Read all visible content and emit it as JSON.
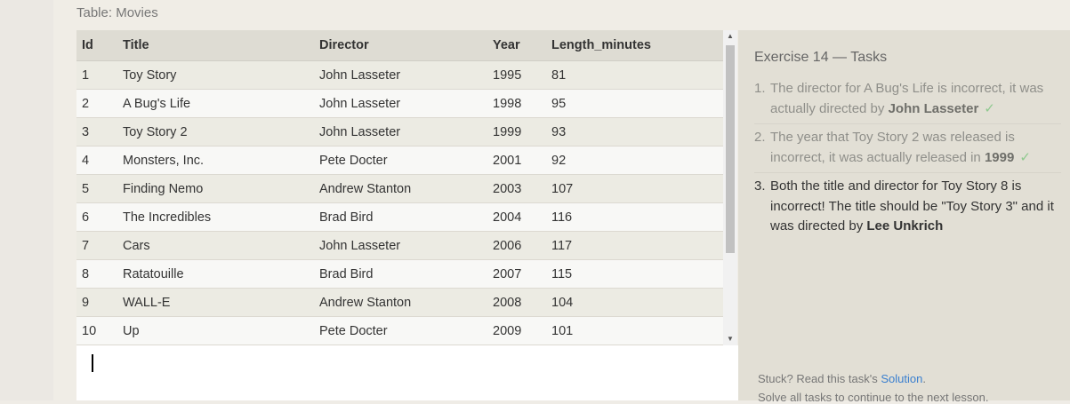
{
  "table_label": "Table: Movies",
  "columns": [
    "Id",
    "Title",
    "Director",
    "Year",
    "Length_minutes"
  ],
  "rows": [
    [
      "1",
      "Toy Story",
      "John Lasseter",
      "1995",
      "81"
    ],
    [
      "2",
      "A Bug's Life",
      "John Lasseter",
      "1998",
      "95"
    ],
    [
      "3",
      "Toy Story 2",
      "John Lasseter",
      "1999",
      "93"
    ],
    [
      "4",
      "Monsters, Inc.",
      "Pete Docter",
      "2001",
      "92"
    ],
    [
      "5",
      "Finding Nemo",
      "Andrew Stanton",
      "2003",
      "107"
    ],
    [
      "6",
      "The Incredibles",
      "Brad Bird",
      "2004",
      "116"
    ],
    [
      "7",
      "Cars",
      "John Lasseter",
      "2006",
      "117"
    ],
    [
      "8",
      "Ratatouille",
      "Brad Bird",
      "2007",
      "115"
    ],
    [
      "9",
      "WALL-E",
      "Andrew Stanton",
      "2008",
      "104"
    ],
    [
      "10",
      "Up",
      "Pete Docter",
      "2009",
      "101"
    ]
  ],
  "scroll_up_glyph": "▲",
  "scroll_down_glyph": "▼",
  "tasks": {
    "title": "Exercise 14 — Tasks",
    "items": [
      {
        "num": "1.",
        "text": "The director for A Bug's Life is incorrect, it was actually directed by ",
        "bold": "John Lasseter",
        "after": "",
        "check": "✓",
        "done": true
      },
      {
        "num": "2.",
        "text": "The year that Toy Story 2 was released is incorrect, it was actually released in ",
        "bold": "1999",
        "after": "",
        "check": "✓",
        "done": true
      },
      {
        "num": "3.",
        "text": "Both the title and director for Toy Story 8 is incorrect! The title should be \"Toy Story 3\" and it was directed by ",
        "bold": "Lee Unkrich",
        "after": "",
        "check": "",
        "done": false
      }
    ],
    "stuck_prefix": "Stuck? Read this task's ",
    "solution_link": "Solution",
    "stuck_suffix": ".",
    "solve_text": "Solve all tasks to continue to the next lesson."
  },
  "colors": {
    "check": "#8fc98f",
    "link": "#3a7fcf"
  }
}
